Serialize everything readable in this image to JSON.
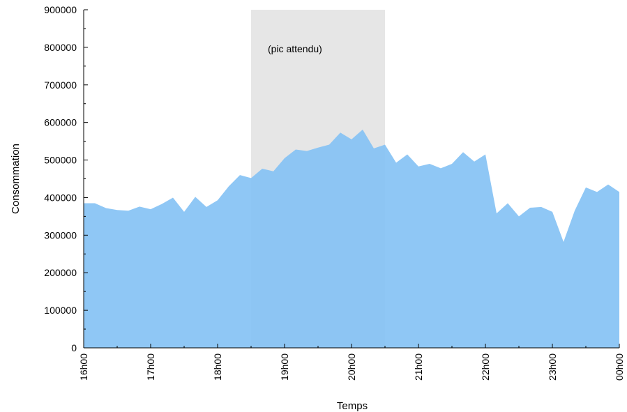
{
  "chart_data": {
    "type": "area",
    "title": "",
    "xlabel": "Temps",
    "ylabel": "Consommation",
    "xlim": [
      16,
      24
    ],
    "ylim": [
      0,
      900000
    ],
    "grid": false,
    "y_ticks": [
      0,
      100000,
      200000,
      300000,
      400000,
      500000,
      600000,
      700000,
      800000,
      900000
    ],
    "y_tick_labels": [
      "0",
      "100000",
      "200000",
      "300000",
      "400000",
      "500000",
      "600000",
      "700000",
      "800000",
      "900000"
    ],
    "x_ticks": [
      16,
      17,
      18,
      19,
      20,
      21,
      22,
      23,
      24
    ],
    "x_tick_labels": [
      "16h00",
      "17h00",
      "18h00",
      "19h00",
      "20h00",
      "21h00",
      "22h00",
      "23h00",
      "00h00"
    ],
    "highlight": {
      "x_start": 18.5,
      "x_end": 20.5,
      "label": "(pic attendu)",
      "color": "#e6e6e6"
    },
    "series": [
      {
        "color": "#83c1f4",
        "x": [
          16.0,
          16.1667,
          16.3333,
          16.5,
          16.6667,
          16.8333,
          17.0,
          17.1667,
          17.3333,
          17.5,
          17.6667,
          17.8333,
          18.0,
          18.1667,
          18.3333,
          18.5,
          18.6667,
          18.8333,
          19.0,
          19.1667,
          19.3333,
          19.5,
          19.6667,
          19.8333,
          20.0,
          20.1667,
          20.3333,
          20.5,
          20.6667,
          20.8333,
          21.0,
          21.1667,
          21.3333,
          21.5,
          21.6667,
          21.8333,
          22.0,
          22.1667,
          22.3333,
          22.5,
          22.6667,
          22.8333,
          23.0,
          23.1667,
          23.3333,
          23.5,
          23.6667,
          23.8333,
          24.0
        ],
        "values": [
          385000,
          385000,
          372000,
          367000,
          365000,
          376000,
          369000,
          383000,
          400000,
          362000,
          402000,
          375000,
          393000,
          430000,
          460000,
          452000,
          477000,
          470000,
          505000,
          528000,
          524000,
          533000,
          541000,
          573000,
          555000,
          581000,
          531000,
          541000,
          493000,
          515000,
          483000,
          490000,
          478000,
          490000,
          521000,
          496000,
          515000,
          358000,
          385000,
          350000,
          373000,
          375000,
          362000,
          282000,
          365000,
          427000,
          415000,
          435000,
          415000
        ]
      }
    ]
  }
}
